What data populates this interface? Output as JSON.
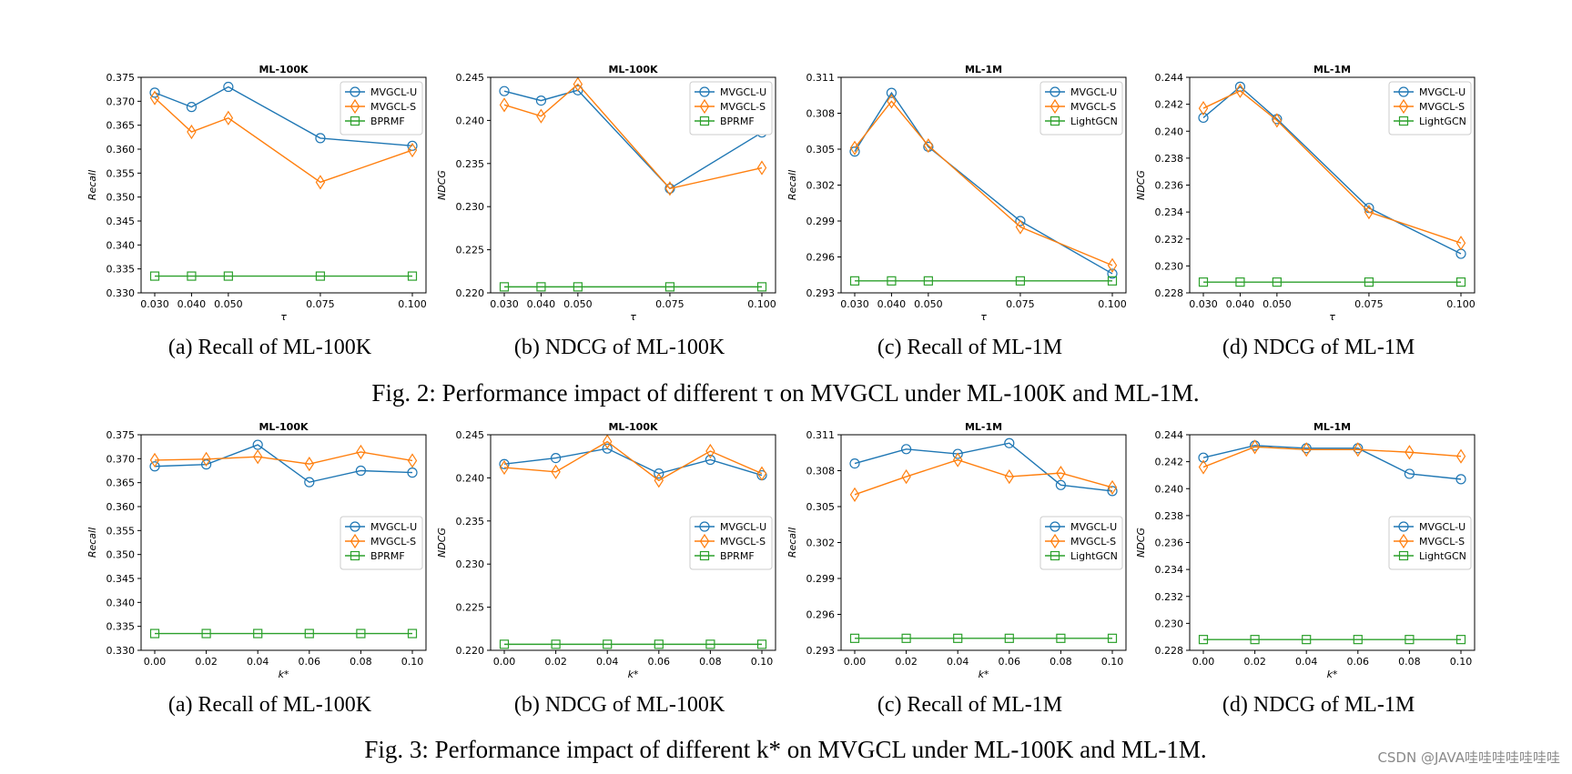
{
  "colors": {
    "mvgcl_u": "#1f77b4",
    "mvgcl_s": "#ff7f0e",
    "baseline": "#2ca02c"
  },
  "figures": [
    {
      "caption": "Fig. 2: Performance impact of different τ on MVGCL under ML-100K and ML-1M."
    },
    {
      "caption": "Fig. 3: Performance impact of different k* on MVGCL under ML-100K and ML-1M."
    }
  ],
  "watermark": "CSDN @JAVA哇哇哇哇哇哇哇",
  "chart_data": [
    {
      "type": "line",
      "title": "ML-100K",
      "subcaption": "(a) Recall of ML-100K",
      "xlabel": "τ",
      "ylabel": "Recall",
      "x": [
        0.03,
        0.04,
        0.05,
        0.075,
        0.1
      ],
      "xticks": [
        "0.030",
        "0.040",
        "0.050",
        "0.075",
        "0.100"
      ],
      "ylim": [
        0.33,
        0.375
      ],
      "yticks": [
        "0.330",
        "0.335",
        "0.340",
        "0.345",
        "0.350",
        "0.355",
        "0.360",
        "0.365",
        "0.370",
        "0.375"
      ],
      "legend": "top-right",
      "series": [
        {
          "name": "MVGCL-U",
          "marker": "circle",
          "values": [
            0.3718,
            0.3688,
            0.373,
            0.3623,
            0.3607
          ]
        },
        {
          "name": "MVGCL-S",
          "marker": "diamond",
          "values": [
            0.3707,
            0.3636,
            0.3665,
            0.3531,
            0.3598
          ]
        },
        {
          "name": "BPRMF",
          "marker": "square",
          "values": [
            0.3335,
            0.3335,
            0.3335,
            0.3335,
            0.3335
          ]
        }
      ]
    },
    {
      "type": "line",
      "title": "ML-100K",
      "subcaption": "(b) NDCG of ML-100K",
      "xlabel": "τ",
      "ylabel": "NDCG",
      "x": [
        0.03,
        0.04,
        0.05,
        0.075,
        0.1
      ],
      "xticks": [
        "0.030",
        "0.040",
        "0.050",
        "0.075",
        "0.100"
      ],
      "ylim": [
        0.22,
        0.245
      ],
      "yticks": [
        "0.220",
        "0.225",
        "0.230",
        "0.235",
        "0.240",
        "0.245"
      ],
      "legend": "top-right",
      "series": [
        {
          "name": "MVGCL-U",
          "marker": "circle",
          "values": [
            0.2434,
            0.2423,
            0.2435,
            0.2321,
            0.2386
          ]
        },
        {
          "name": "MVGCL-S",
          "marker": "diamond",
          "values": [
            0.2418,
            0.2405,
            0.2442,
            0.2321,
            0.2345
          ]
        },
        {
          "name": "BPRMF",
          "marker": "square",
          "values": [
            0.2207,
            0.2207,
            0.2207,
            0.2207,
            0.2207
          ]
        }
      ]
    },
    {
      "type": "line",
      "title": "ML-1M",
      "subcaption": "(c) Recall of ML-1M",
      "xlabel": "τ",
      "ylabel": "Recall",
      "x": [
        0.03,
        0.04,
        0.05,
        0.075,
        0.1
      ],
      "xticks": [
        "0.030",
        "0.040",
        "0.050",
        "0.075",
        "0.100"
      ],
      "ylim": [
        0.293,
        0.311
      ],
      "yticks": [
        "0.293",
        "0.296",
        "0.299",
        "0.302",
        "0.305",
        "0.308",
        "0.311"
      ],
      "legend": "top-right",
      "series": [
        {
          "name": "MVGCL-U",
          "marker": "circle",
          "values": [
            0.3048,
            0.3097,
            0.3052,
            0.299,
            0.2946
          ]
        },
        {
          "name": "MVGCL-S",
          "marker": "diamond",
          "values": [
            0.3051,
            0.309,
            0.3053,
            0.2985,
            0.2953
          ]
        },
        {
          "name": "LightGCN",
          "marker": "square",
          "values": [
            0.294,
            0.294,
            0.294,
            0.294,
            0.294
          ]
        }
      ]
    },
    {
      "type": "line",
      "title": "ML-1M",
      "subcaption": "(d) NDCG of ML-1M",
      "xlabel": "τ",
      "ylabel": "NDCG",
      "x": [
        0.03,
        0.04,
        0.05,
        0.075,
        0.1
      ],
      "xticks": [
        "0.030",
        "0.040",
        "0.050",
        "0.075",
        "0.100"
      ],
      "ylim": [
        0.228,
        0.244
      ],
      "yticks": [
        "0.228",
        "0.230",
        "0.232",
        "0.234",
        "0.236",
        "0.238",
        "0.240",
        "0.242",
        "0.244"
      ],
      "legend": "top-right",
      "series": [
        {
          "name": "MVGCL-U",
          "marker": "circle",
          "values": [
            0.241,
            0.2433,
            0.2409,
            0.2343,
            0.2309
          ]
        },
        {
          "name": "MVGCL-S",
          "marker": "diamond",
          "values": [
            0.2417,
            0.243,
            0.2408,
            0.234,
            0.2317
          ]
        },
        {
          "name": "LightGCN",
          "marker": "square",
          "values": [
            0.2288,
            0.2288,
            0.2288,
            0.2288,
            0.2288
          ]
        }
      ]
    },
    {
      "type": "line",
      "title": "ML-100K",
      "subcaption": "(a) Recall of ML-100K",
      "xlabel": "k*",
      "ylabel": "Recall",
      "x": [
        0.0,
        0.02,
        0.04,
        0.06,
        0.08,
        0.1
      ],
      "xticks": [
        "0.00",
        "0.02",
        "0.04",
        "0.06",
        "0.08",
        "0.10"
      ],
      "ylim": [
        0.33,
        0.375
      ],
      "yticks": [
        "0.330",
        "0.335",
        "0.340",
        "0.345",
        "0.350",
        "0.355",
        "0.360",
        "0.365",
        "0.370",
        "0.375"
      ],
      "legend": "center-right",
      "series": [
        {
          "name": "MVGCL-U",
          "marker": "circle",
          "values": [
            0.3684,
            0.3688,
            0.3729,
            0.3651,
            0.3675,
            0.3671
          ]
        },
        {
          "name": "MVGCL-S",
          "marker": "diamond",
          "values": [
            0.3697,
            0.3699,
            0.3704,
            0.3689,
            0.3714,
            0.3696
          ]
        },
        {
          "name": "BPRMF",
          "marker": "square",
          "values": [
            0.3335,
            0.3335,
            0.3335,
            0.3335,
            0.3335,
            0.3335
          ]
        }
      ]
    },
    {
      "type": "line",
      "title": "ML-100K",
      "subcaption": "(b) NDCG of ML-100K",
      "xlabel": "k*",
      "ylabel": "NDCG",
      "x": [
        0.0,
        0.02,
        0.04,
        0.06,
        0.08,
        0.1
      ],
      "xticks": [
        "0.00",
        "0.02",
        "0.04",
        "0.06",
        "0.08",
        "0.10"
      ],
      "ylim": [
        0.22,
        0.245
      ],
      "yticks": [
        "0.220",
        "0.225",
        "0.230",
        "0.235",
        "0.240",
        "0.245"
      ],
      "legend": "center-right",
      "series": [
        {
          "name": "MVGCL-U",
          "marker": "circle",
          "values": [
            0.2416,
            0.2423,
            0.2434,
            0.2405,
            0.2421,
            0.2403
          ]
        },
        {
          "name": "MVGCL-S",
          "marker": "diamond",
          "values": [
            0.2412,
            0.2407,
            0.2442,
            0.2397,
            0.2431,
            0.2405
          ]
        },
        {
          "name": "BPRMF",
          "marker": "square",
          "values": [
            0.2207,
            0.2207,
            0.2207,
            0.2207,
            0.2207,
            0.2207
          ]
        }
      ]
    },
    {
      "type": "line",
      "title": "ML-1M",
      "subcaption": "(c) Recall of ML-1M",
      "xlabel": "k*",
      "ylabel": "Recall",
      "x": [
        0.0,
        0.02,
        0.04,
        0.06,
        0.08,
        0.1
      ],
      "xticks": [
        "0.00",
        "0.02",
        "0.04",
        "0.06",
        "0.08",
        "0.10"
      ],
      "ylim": [
        0.293,
        0.311
      ],
      "yticks": [
        "0.293",
        "0.296",
        "0.299",
        "0.302",
        "0.305",
        "0.308",
        "0.311"
      ],
      "legend": "center-right",
      "series": [
        {
          "name": "MVGCL-U",
          "marker": "circle",
          "values": [
            0.3086,
            0.3098,
            0.3094,
            0.3103,
            0.3068,
            0.3063
          ]
        },
        {
          "name": "MVGCL-S",
          "marker": "diamond",
          "values": [
            0.306,
            0.3075,
            0.3089,
            0.3075,
            0.3078,
            0.3066
          ]
        },
        {
          "name": "LightGCN",
          "marker": "square",
          "values": [
            0.294,
            0.294,
            0.294,
            0.294,
            0.294,
            0.294
          ]
        }
      ]
    },
    {
      "type": "line",
      "title": "ML-1M",
      "subcaption": "(d) NDCG of ML-1M",
      "xlabel": "k*",
      "ylabel": "NDCG",
      "x": [
        0.0,
        0.02,
        0.04,
        0.06,
        0.08,
        0.1
      ],
      "xticks": [
        "0.00",
        "0.02",
        "0.04",
        "0.06",
        "0.08",
        "0.10"
      ],
      "ylim": [
        0.228,
        0.244
      ],
      "yticks": [
        "0.228",
        "0.230",
        "0.232",
        "0.234",
        "0.236",
        "0.238",
        "0.240",
        "0.242",
        "0.244"
      ],
      "legend": "center-right",
      "series": [
        {
          "name": "MVGCL-U",
          "marker": "circle",
          "values": [
            0.2423,
            0.2432,
            0.243,
            0.243,
            0.2411,
            0.2407
          ]
        },
        {
          "name": "MVGCL-S",
          "marker": "diamond",
          "values": [
            0.2416,
            0.2431,
            0.2429,
            0.2429,
            0.2427,
            0.2424
          ]
        },
        {
          "name": "LightGCN",
          "marker": "square",
          "values": [
            0.2288,
            0.2288,
            0.2288,
            0.2288,
            0.2288,
            0.2288
          ]
        }
      ]
    }
  ]
}
